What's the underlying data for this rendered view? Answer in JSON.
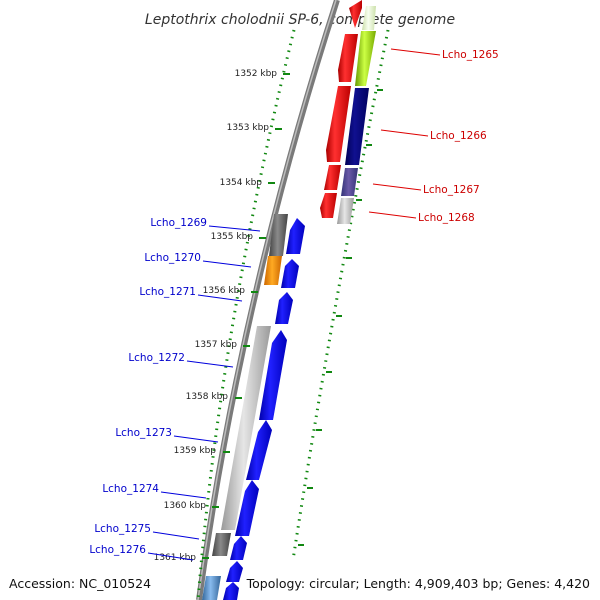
{
  "title": "Leptothrix cholodnii SP-6, complete genome",
  "accession": "Accession: NC_010524",
  "summary": "Topology: circular; Length: 4,909,403 bp; Genes: 4,420",
  "colors": {
    "forward_label": "#0000cc",
    "reverse_label": "#cc0000",
    "tick": "#118811",
    "backbone": "#888888"
  },
  "kbp_ticks": [
    "1352 kbp",
    "1353 kbp",
    "1354 kbp",
    "1355 kbp",
    "1356 kbp",
    "1357 kbp",
    "1358 kbp",
    "1359 kbp",
    "1360 kbp",
    "1361 kbp"
  ],
  "genes_reverse": [
    {
      "label": "Lcho_1265",
      "strand": "reverse"
    },
    {
      "label": "Lcho_1266",
      "strand": "reverse"
    },
    {
      "label": "Lcho_1267",
      "strand": "reverse"
    },
    {
      "label": "Lcho_1268",
      "strand": "reverse"
    }
  ],
  "genes_forward": [
    {
      "label": "Lcho_1269",
      "strand": "forward"
    },
    {
      "label": "Lcho_1270",
      "strand": "forward"
    },
    {
      "label": "Lcho_1271",
      "strand": "forward"
    },
    {
      "label": "Lcho_1272",
      "strand": "forward"
    },
    {
      "label": "Lcho_1273",
      "strand": "forward"
    },
    {
      "label": "Lcho_1274",
      "strand": "forward"
    },
    {
      "label": "Lcho_1275",
      "strand": "forward"
    },
    {
      "label": "Lcho_1276",
      "strand": "forward"
    }
  ]
}
